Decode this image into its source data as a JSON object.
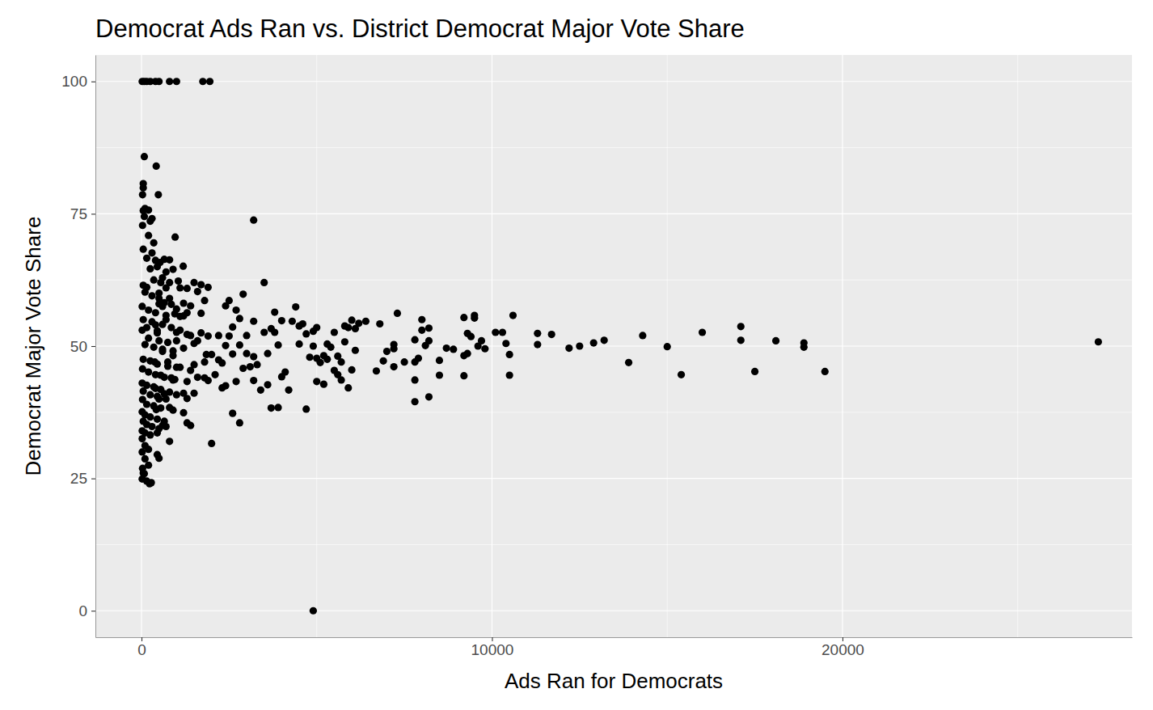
{
  "chart_data": {
    "type": "scatter",
    "title": "Democrat Ads Ran vs. District Democrat Major Vote Share",
    "x_label": "Ads Ran for Democrats",
    "y_label": "Democrat Major Vote Share",
    "xlim": [
      -1315,
      28260
    ],
    "ylim": [
      -5,
      105
    ],
    "xticks": [
      0,
      10000,
      20000
    ],
    "yticks": [
      0,
      25,
      50,
      75,
      100
    ],
    "grid": true,
    "color": "#000000",
    "marker": "circle",
    "x": [
      20,
      80,
      150,
      250,
      400,
      500,
      800,
      1000,
      1750,
      1950,
      4900,
      3200,
      27300,
      19500,
      18900,
      18900,
      18100,
      17500,
      17100,
      17100,
      16000,
      15400,
      15000,
      14300,
      13900,
      13200,
      12900,
      12500,
      12200,
      11700,
      11300,
      11300,
      10600,
      10500,
      10500,
      10400,
      10300,
      10100,
      9800,
      9700,
      9600,
      9500,
      9500,
      9400,
      9300,
      9300,
      9200,
      9200,
      9200,
      8900,
      8700,
      8500,
      8500,
      8200,
      8200,
      8200,
      8100,
      8000,
      8000,
      7900,
      7800,
      7800,
      7800,
      7800,
      7500,
      7300,
      7200,
      7200,
      7200,
      7000,
      6900,
      6800,
      6700,
      6400,
      6200,
      6100,
      6100,
      6000,
      6000,
      5900,
      5900,
      5800,
      5800,
      5700,
      5700,
      5600,
      5600,
      5500,
      5500,
      5400,
      5300,
      5300,
      5200,
      5200,
      5100,
      5000,
      5000,
      5000,
      4900,
      4900,
      4800,
      4700,
      4700,
      4600,
      4500,
      4500,
      4400,
      4300,
      4200,
      4100,
      4000,
      4000,
      3900,
      3900,
      3800,
      3800,
      3700,
      3700,
      3600,
      3600,
      3500,
      3500,
      3400,
      3300,
      3200,
      3200,
      3200,
      3100,
      3000,
      3000,
      2900,
      2900,
      2800,
      2800,
      2800,
      2700,
      2700,
      2600,
      2600,
      2600,
      2500,
      2500,
      2400,
      2400,
      2400,
      2300,
      2300,
      2200,
      2200,
      2100,
      2000,
      2000,
      1900,
      1900,
      1850,
      1800,
      1800,
      1700,
      1700,
      1600,
      1600,
      1500,
      1500,
      1500,
      1400,
      1400,
      1300,
      1300,
      1200,
      1200,
      1200,
      1100,
      1100,
      1000,
      1000,
      1000,
      900,
      900,
      850,
      800,
      800,
      800,
      750,
      700,
      700,
      700,
      650,
      600,
      600,
      600,
      550,
      550,
      500,
      500,
      500,
      450,
      450,
      420,
      400,
      400,
      380,
      80,
      50,
      50,
      30,
      420,
      480,
      960,
      100,
      50,
      200,
      80,
      300,
      250,
      30,
      200,
      350,
      50,
      300,
      150,
      400,
      650,
      800,
      530,
      1190,
      900,
      700,
      250,
      50,
      150,
      350,
      600,
      1050,
      1500,
      1700,
      1900,
      1300,
      100,
      300,
      500,
      650,
      850,
      1200,
      1400,
      20,
      200,
      400,
      700,
      950,
      1100,
      50,
      300,
      600,
      850,
      20,
      150,
      450,
      1000,
      1300,
      200,
      500,
      750,
      1600,
      100,
      350,
      600,
      900,
      1800,
      50,
      250,
      450,
      750,
      1100,
      30,
      200,
      400,
      650,
      950,
      1300,
      20,
      150,
      350,
      550,
      800,
      1000,
      1300,
      50,
      250,
      450,
      700,
      30,
      150,
      350,
      550,
      900,
      1200,
      20,
      100,
      250,
      450,
      650,
      1400,
      50,
      150,
      300,
      500,
      20,
      100,
      250,
      450,
      800,
      20,
      100,
      200,
      450,
      500,
      20,
      100,
      30,
      80,
      20,
      150,
      230,
      280,
      50,
      200
    ],
    "values": [
      100,
      100,
      100,
      100,
      100,
      100,
      100,
      100,
      100,
      100,
      0,
      73.8,
      50.8,
      45.2,
      49.8,
      50.6,
      51,
      45.2,
      53.7,
      51.1,
      52.6,
      44.6,
      49.9,
      52,
      46.9,
      51.1,
      50.6,
      50,
      49.6,
      52.2,
      52.4,
      50.3,
      55.8,
      48.4,
      44.5,
      50.5,
      52.6,
      52.6,
      49.5,
      51,
      50,
      55.8,
      55.3,
      51.8,
      52.4,
      48.6,
      55.4,
      48.2,
      44.4,
      49.4,
      49.6,
      47.3,
      44.5,
      53.4,
      51,
      40.4,
      50.1,
      55,
      53,
      47.7,
      51.2,
      47,
      43.6,
      39.5,
      47,
      56.2,
      50.3,
      49.5,
      46.1,
      49,
      47.2,
      54.2,
      45.3,
      54.7,
      54.3,
      53.3,
      49.2,
      54.9,
      45.5,
      53.5,
      42.1,
      53.8,
      50.8,
      47,
      43.6,
      48.1,
      44.6,
      52.6,
      45.4,
      49.8,
      50.4,
      47.5,
      48.2,
      42.8,
      46.9,
      53.5,
      47.7,
      43.3,
      52.8,
      50,
      47.9,
      52.3,
      38.1,
      54.2,
      50.4,
      53.8,
      57.4,
      54.7,
      41.7,
      45.1,
      54.8,
      44.2,
      50.2,
      38.4,
      56.4,
      52.6,
      53.3,
      38.3,
      48.6,
      42.7,
      62,
      52.6,
      41.7,
      46.5,
      54.7,
      48,
      43.5,
      46.1,
      48.6,
      52,
      59.8,
      45.8,
      55.2,
      35.5,
      50.2,
      56.8,
      43.3,
      37.3,
      53.6,
      48.5,
      58.6,
      51.9,
      50.1,
      57.6,
      42.5,
      46.8,
      42.1,
      47.4,
      52,
      44.6,
      48.4,
      31.6,
      51.9,
      43.5,
      48.4,
      58.6,
      44,
      56.2,
      52.5,
      60.3,
      44.1,
      50.5,
      41.1,
      46.5,
      45.4,
      52,
      56.3,
      35.5,
      55.7,
      49.6,
      41.1,
      61,
      53,
      46,
      57,
      51,
      43.6,
      48.2,
      44,
      62,
      59,
      38.4,
      47,
      61,
      34.8,
      55,
      41,
      57.5,
      49,
      35,
      62,
      44.5,
      60,
      58,
      40,
      65,
      52.5,
      38,
      54,
      42,
      47,
      85.8,
      80.7,
      79.9,
      78.6,
      84,
      78.6,
      70.6,
      76,
      75.6,
      75.7,
      74.5,
      74.1,
      73.6,
      72.8,
      70.9,
      69.5,
      68.3,
      67.6,
      66.6,
      66.2,
      66.4,
      66.3,
      65.8,
      65.1,
      64.5,
      64,
      64.6,
      61.5,
      61.1,
      62.5,
      62.9,
      62.3,
      62,
      61.6,
      61.1,
      60.9,
      60.2,
      59.5,
      59,
      58.2,
      57.9,
      58.1,
      57.6,
      57.5,
      56.8,
      56.3,
      55.8,
      56.1,
      55.6,
      55,
      54.6,
      54.1,
      53.5,
      53,
      53.5,
      52.9,
      52.6,
      52.2,
      51.5,
      51,
      50.7,
      51,
      50.3,
      49.8,
      49.4,
      49.1,
      47,
      47.5,
      47.2,
      46.6,
      46.2,
      46,
      45.7,
      45.1,
      44.6,
      44.1,
      43.7,
      43.3,
      43,
      42.6,
      42.3,
      41.8,
      41.3,
      40.8,
      40.1,
      41.5,
      40.8,
      40.5,
      40,
      39.9,
      39,
      38.7,
      38.3,
      37.9,
      37.4,
      37.6,
      37,
      36.6,
      36.2,
      35.8,
      35,
      35.8,
      35.2,
      34.8,
      34.4,
      34,
      33.6,
      33.2,
      33.6,
      32,
      32.5,
      31.2,
      30.5,
      29.5,
      28.8,
      30,
      28.7,
      26.9,
      25.9,
      24.9,
      24.5,
      24,
      24.2,
      26,
      27.5
    ]
  }
}
